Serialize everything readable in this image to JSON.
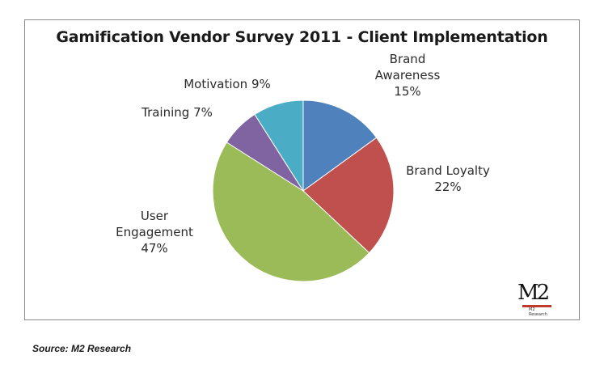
{
  "chart_data": {
    "type": "pie",
    "title": "Gamification Vendor Survey 2011 - Client Implementation",
    "start": "12 o'clock, clockwise",
    "slices": [
      {
        "name": "Brand Awareness",
        "label_lines": [
          "Brand",
          "Awareness",
          "15%"
        ],
        "value": 15,
        "color": "#4f81bd"
      },
      {
        "name": "Brand Loyalty",
        "label_lines": [
          "Brand Loyalty",
          "22%"
        ],
        "value": 22,
        "color": "#c0504d"
      },
      {
        "name": "User Engagement",
        "label_lines": [
          "User",
          "Engagement",
          "47%"
        ],
        "value": 47,
        "color": "#9bbb59"
      },
      {
        "name": "Training",
        "label_lines": [
          "Training 7%"
        ],
        "value": 7,
        "color": "#8064a2"
      },
      {
        "name": "Motivation",
        "label_lines": [
          "Motivation 9%"
        ],
        "value": 9,
        "color": "#4bacc6"
      }
    ]
  },
  "logo": {
    "mark": "M2",
    "caption": "M2 Research"
  },
  "source": "Source: M2 Research"
}
